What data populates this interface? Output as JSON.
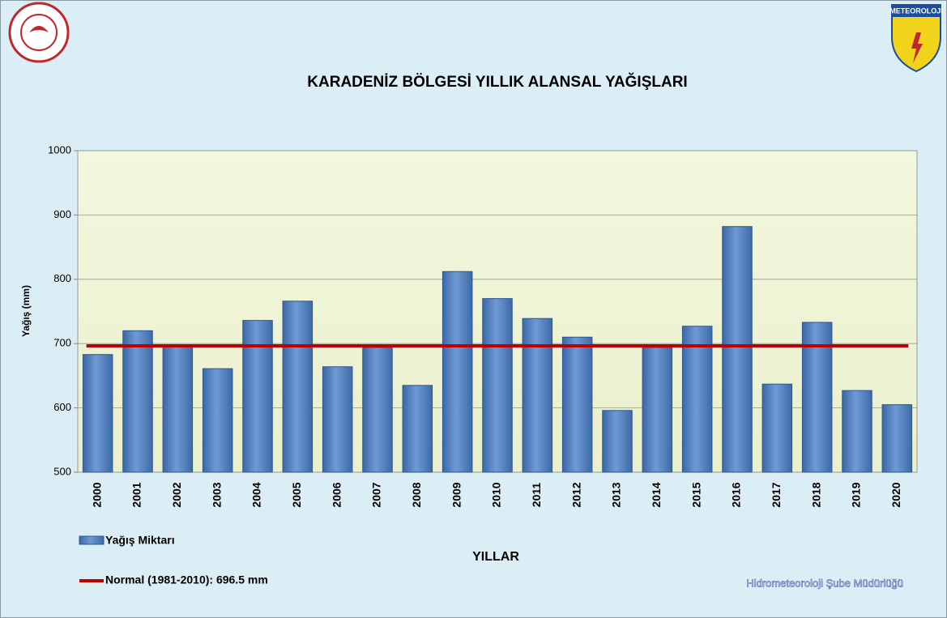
{
  "chart_data": {
    "type": "bar",
    "title": "KARADENİZ BÖLGESİ  YILLIK ALANSAL YAĞIŞLARI",
    "y_label": "Yağış (mm)",
    "x_label": "YILLAR",
    "categories": [
      "2000",
      "2001",
      "2002",
      "2003",
      "2004",
      "2005",
      "2006",
      "2007",
      "2008",
      "2009",
      "2010",
      "2011",
      "2012",
      "2013",
      "2014",
      "2015",
      "2016",
      "2017",
      "2018",
      "2019",
      "2020"
    ],
    "series": [
      {
        "name": "Yağış Miktarı",
        "color": "#4f81bd",
        "values": [
          683,
          720,
          697,
          661,
          736,
          766,
          664,
          694,
          635,
          812,
          770,
          739,
          710,
          596,
          694,
          727,
          882,
          637,
          733,
          627,
          605
        ]
      }
    ],
    "reference_line": {
      "name": "Normal (1981-2010): 696.5 mm",
      "value": 696.5,
      "color": "#c00000"
    },
    "ylim": [
      500,
      1000
    ],
    "yticks": [
      500,
      600,
      700,
      800,
      900,
      1000
    ],
    "grid": true,
    "logo_text": "METEOROLOJİ",
    "footer": "Hidrometeoroloji Şube Müdürlüğü"
  }
}
